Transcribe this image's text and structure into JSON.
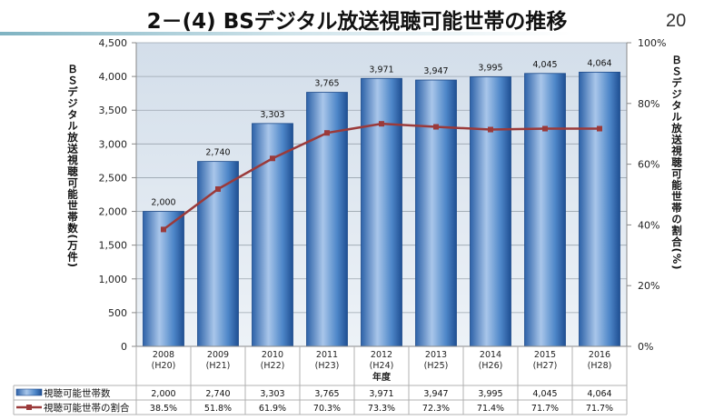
{
  "title": "2－(4) BSデジタル放送視聴可能世帯の推移",
  "page_number": "20",
  "chart_data": {
    "type": "bar+line",
    "categories": [
      "2008\n(H20)",
      "2009\n(H21)",
      "2010\n(H22)",
      "2011\n(H23)",
      "2012\n(H24)",
      "2013\n(H25)",
      "2014\n(H26)",
      "2015\n(H27)",
      "2016\n(H28)"
    ],
    "category_years": [
      "2008",
      "2009",
      "2010",
      "2011",
      "2012",
      "2013",
      "2014",
      "2015",
      "2016"
    ],
    "category_eras": [
      "(H20)",
      "(H21)",
      "(H22)",
      "(H23)",
      "(H24)",
      "(H25)",
      "(H26)",
      "(H27)",
      "(H28)"
    ],
    "xlabel": "年度",
    "ylabel": "ＢＳデジタル放送視聴可能世帯数(万件)",
    "y2label": "ＢＳデジタル放送視聴可能世帯の割合(%)",
    "ylim": [
      0,
      4500
    ],
    "y_ticks": [
      "0",
      "500",
      "1,000",
      "1,500",
      "2,000",
      "2,500",
      "3,000",
      "3,500",
      "4,000",
      "4,500"
    ],
    "y2lim": [
      0,
      100
    ],
    "y2_ticks": [
      "0%",
      "20%",
      "40%",
      "60%",
      "80%",
      "100%"
    ],
    "grid": true,
    "series": [
      {
        "name": "視聴可能世帯数",
        "type": "bar",
        "values": [
          2000,
          2740,
          3303,
          3765,
          3971,
          3947,
          3995,
          4045,
          4064
        ],
        "labels": [
          "2,000",
          "2,740",
          "3,303",
          "3,765",
          "3,971",
          "3,947",
          "3,995",
          "4,045",
          "4,064"
        ],
        "color": "#2f6db5"
      },
      {
        "name": "視聴可能世帯の割合",
        "type": "line",
        "axis": "right",
        "values": [
          38.5,
          51.8,
          61.9,
          70.3,
          73.3,
          72.3,
          71.4,
          71.7,
          71.7
        ],
        "labels": [
          "38.5%",
          "51.8%",
          "61.9%",
          "70.3%",
          "73.3%",
          "72.3%",
          "71.4%",
          "71.7%",
          "71.7%"
        ],
        "color": "#9b3a3a"
      }
    ],
    "legend": "data-table"
  }
}
